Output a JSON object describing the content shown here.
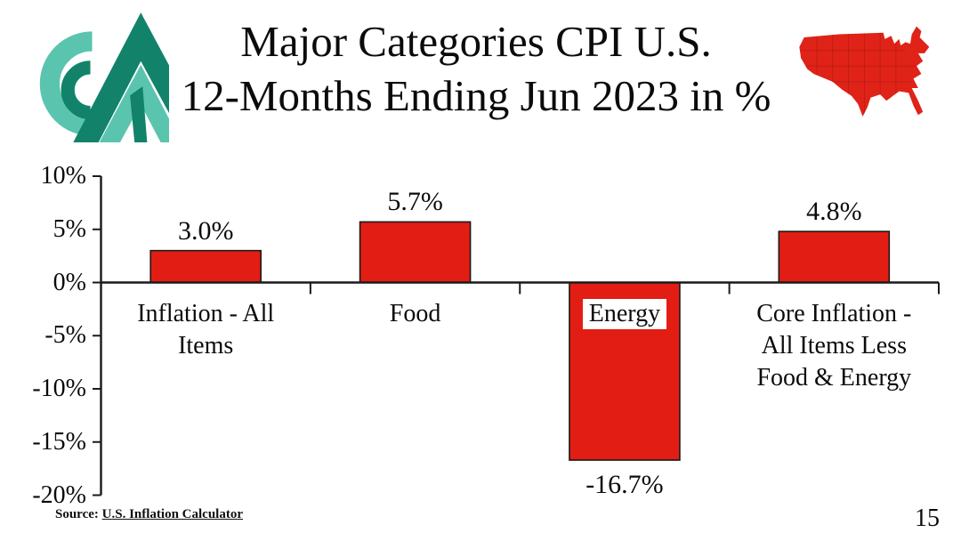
{
  "slide": {
    "title_line1": "Major Categories CPI U.S.",
    "title_line2": "12-Months Ending Jun 2023 in %",
    "source_prefix": "Source: ",
    "source_link": "U.S. Inflation Calculator",
    "page_number": "15",
    "icons": {
      "logo": "cm-mountain-logo",
      "map": "us-map-red"
    },
    "colors": {
      "bar_fill": "#E21D14",
      "bar_border": "#1a1a1a",
      "axis": "#1a1a1a",
      "map_red": "#DF2318",
      "logo_teal_light": "#5BC4AE",
      "logo_teal_dark": "#12836A"
    }
  },
  "chart_data": {
    "type": "bar",
    "title": "Major Categories CPI U.S. 12-Months Ending Jun 2023 in %",
    "categories": [
      "Inflation - All Items",
      "Food",
      "Energy",
      "Core Inflation - All Items Less Food & Energy"
    ],
    "category_lines": [
      [
        "Inflation - All",
        "Items"
      ],
      [
        "Food"
      ],
      [
        "Energy"
      ],
      [
        "Core Inflation -",
        "All Items Less",
        "Food & Energy"
      ]
    ],
    "category_on_bar": [
      false,
      false,
      true,
      false
    ],
    "values": [
      3.0,
      5.7,
      -16.7,
      4.8
    ],
    "value_labels": [
      "3.0%",
      "5.7%",
      "-16.7%",
      "4.8%"
    ],
    "y_ticks": [
      "10%",
      "5%",
      "0%",
      "-5%",
      "-10%",
      "-15%",
      "-20%"
    ],
    "y_tick_values": [
      10,
      5,
      0,
      -5,
      -10,
      -15,
      -20
    ],
    "ylim": [
      -20,
      10
    ],
    "xlabel": "",
    "ylabel": "",
    "grid": false,
    "legend": false,
    "bar_color": "#E21D14"
  }
}
